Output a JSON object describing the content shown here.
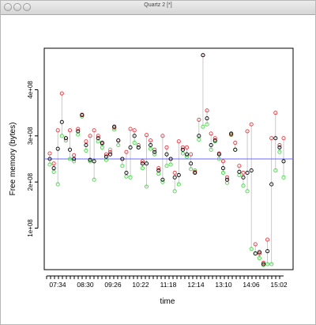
{
  "window": {
    "title": "Quartz 2 [*]"
  },
  "chart_data": {
    "type": "scatter",
    "xlabel": "time",
    "ylabel": "Free memory (bytes)",
    "x_tick_labels": [
      "07:34",
      "08:30",
      "09:26",
      "10:22",
      "11:18",
      "12:14",
      "13:10",
      "14:06",
      "15:02"
    ],
    "y_tick_labels": [
      "1e+08",
      "2e+08",
      "3e+08",
      "4e+08"
    ],
    "y_ticks": [
      100000000,
      200000000,
      300000000,
      400000000
    ],
    "ylim": [
      10000000,
      490000000
    ],
    "reference_line": {
      "y": 250000000,
      "color": "#6a6aff"
    },
    "colors": {
      "mean": "#000000",
      "max": "#e8323c",
      "min": "#3adc3a",
      "range": "#bdbdbd"
    },
    "series_roles": [
      "mean",
      "max",
      "min"
    ],
    "points": [
      [
        0,
        250,
        262,
        238
      ],
      [
        1,
        230,
        240,
        222
      ],
      [
        2,
        272,
        312,
        195
      ],
      [
        3,
        330,
        392,
        300
      ],
      [
        4,
        295,
        295,
        290
      ],
      [
        5,
        270,
        312,
        250
      ],
      [
        6,
        250,
        258,
        245
      ],
      [
        7,
        310,
        315,
        303
      ],
      [
        8,
        345,
        346,
        342
      ],
      [
        9,
        280,
        288,
        268
      ],
      [
        10,
        248,
        300,
        245
      ],
      [
        11,
        245,
        312,
        205
      ],
      [
        12,
        295,
        300,
        288
      ],
      [
        13,
        285,
        283,
        275
      ],
      [
        14,
        255,
        260,
        248
      ],
      [
        15,
        260,
        265,
        270
      ],
      [
        16,
        320,
        318,
        314
      ],
      [
        17,
        290,
        290,
        280
      ],
      [
        18,
        250,
        250,
        235
      ],
      [
        19,
        220,
        265,
        212
      ],
      [
        20,
        275,
        315,
        210
      ],
      [
        21,
        300,
        312,
        285
      ],
      [
        22,
        275,
        280,
        275
      ],
      [
        23,
        240,
        245,
        230
      ],
      [
        24,
        240,
        302,
        190
      ],
      [
        25,
        280,
        290,
        272
      ],
      [
        26,
        265,
        270,
        260
      ],
      [
        27,
        225,
        230,
        218
      ],
      [
        28,
        205,
        300,
        200
      ],
      [
        29,
        260,
        275,
        235
      ],
      [
        30,
        250,
        250,
        238
      ],
      [
        31,
        210,
        220,
        180
      ],
      [
        32,
        215,
        288,
        195
      ],
      [
        33,
        270,
        275,
        262
      ],
      [
        34,
        260,
        275,
        255
      ],
      [
        35,
        240,
        260,
        228
      ],
      [
        36,
        220,
        222,
        225
      ],
      [
        37,
        300,
        335,
        292
      ],
      [
        38,
        475,
        475,
        320
      ],
      [
        39,
        338,
        355,
        325
      ],
      [
        40,
        280,
        305,
        270
      ],
      [
        41,
        290,
        295,
        288
      ],
      [
        42,
        260,
        262,
        250
      ],
      [
        43,
        230,
        245,
        220
      ],
      [
        44,
        205,
        210,
        198
      ],
      [
        45,
        305,
        303,
        302
      ],
      [
        46,
        270,
        285,
        270
      ],
      [
        47,
        222,
        235,
        215
      ],
      [
        48,
        210,
        220,
        192
      ],
      [
        49,
        220,
        310,
        180
      ],
      [
        50,
        225,
        325,
        55
      ],
      [
        51,
        45,
        65,
        45
      ],
      [
        52,
        48,
        45,
        35
      ],
      [
        53,
        22,
        25,
        20
      ],
      [
        54,
        50,
        75,
        22
      ],
      [
        55,
        195,
        295,
        22
      ],
      [
        56,
        295,
        350,
        225
      ],
      [
        57,
        275,
        280,
        265
      ],
      [
        58,
        245,
        295,
        210
      ]
    ]
  }
}
